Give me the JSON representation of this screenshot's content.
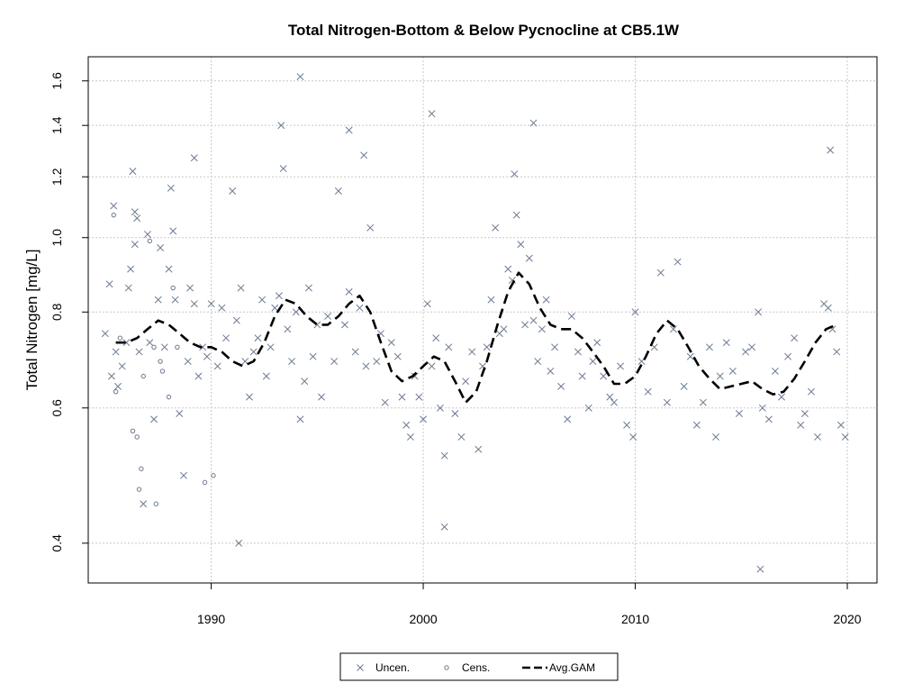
{
  "chart_data": {
    "type": "scatter",
    "title": "Total Nitrogen-Bottom & Below Pycnocline at CB5.1W",
    "xlabel": "",
    "ylabel": "Total Nitrogen [mg/L]",
    "xlim": [
      1984.2,
      2021.4
    ],
    "ylim": [
      0.355,
      1.72
    ],
    "y_scale": "log",
    "grid": true,
    "legend_position": "bottom",
    "x_ticks": [
      1990,
      2000,
      2010,
      2020
    ],
    "y_ticks": [
      0.4,
      0.6,
      0.8,
      1.0,
      1.2,
      1.4,
      1.6
    ],
    "y_tick_labels": [
      "0.4",
      "0.6",
      "0.8",
      "1.0",
      "1.2",
      "1.4",
      "1.6"
    ],
    "colors": {
      "points": "#6b7a8f",
      "gam": "#000000",
      "grid": "#c8c8c8"
    },
    "legend": [
      {
        "label": "Uncen.",
        "symbol": "x-marker-icon"
      },
      {
        "label": "Cens.",
        "symbol": "circle-marker-icon"
      },
      {
        "label": "Avg.GAM",
        "symbol": "dashed-line-icon"
      }
    ],
    "series": [
      {
        "name": "Uncen.",
        "marker": "x",
        "x": [
          1985.0,
          1985.2,
          1985.3,
          1985.4,
          1985.5,
          1985.6,
          1985.8,
          1986.0,
          1986.1,
          1986.2,
          1986.3,
          1986.4,
          1986.5,
          1986.6,
          1986.8,
          1987.0,
          1987.1,
          1987.3,
          1987.5,
          1987.6,
          1987.8,
          1988.0,
          1988.1,
          1988.2,
          1988.3,
          1988.5,
          1988.7,
          1988.9,
          1989.0,
          1989.2,
          1989.4,
          1989.6,
          1989.8,
          1990.0,
          1990.3,
          1990.5,
          1990.7,
          1991.0,
          1991.2,
          1991.4,
          1991.6,
          1991.8,
          1992.0,
          1992.2,
          1992.4,
          1992.6,
          1992.8,
          1993.0,
          1993.2,
          1993.4,
          1993.6,
          1993.8,
          1994.0,
          1994.2,
          1994.4,
          1994.6,
          1994.8,
          1995.0,
          1995.2,
          1995.5,
          1995.8,
          1996.0,
          1996.3,
          1996.5,
          1996.8,
          1997.0,
          1997.3,
          1997.5,
          1997.8,
          1998.0,
          1998.2,
          1998.5,
          1998.8,
          1999.0,
          1999.2,
          1999.4,
          1999.6,
          1999.8,
          2000.0,
          2000.2,
          2000.4,
          2000.6,
          2000.8,
          2001.0,
          2001.2,
          2001.5,
          2001.8,
          2002.0,
          2002.3,
          2002.6,
          2002.8,
          2003.0,
          2003.2,
          2003.4,
          2003.6,
          2003.8,
          2004.0,
          2004.2,
          2004.4,
          2004.6,
          2004.8,
          2005.0,
          2005.2,
          2005.4,
          2005.6,
          2005.8,
          2006.0,
          2006.2,
          2006.5,
          2006.8,
          2007.0,
          2007.3,
          2007.5,
          2007.8,
          2008.0,
          2008.2,
          2008.5,
          2008.8,
          2009.0,
          2009.3,
          2009.6,
          2009.9,
          2010.0,
          2010.3,
          2010.6,
          2010.9,
          2011.2,
          2011.5,
          2011.8,
          2012.0,
          2012.3,
          2012.6,
          2012.9,
          2013.2,
          2013.5,
          2013.8,
          2014.0,
          2014.3,
          2014.6,
          2014.9,
          2015.2,
          2015.5,
          2015.8,
          2016.0,
          2016.3,
          2016.6,
          2016.9,
          2017.2,
          2017.5,
          2017.8,
          2018.0,
          2018.3,
          2018.6,
          2018.9,
          2019.1,
          2019.3,
          2019.5,
          2019.7,
          2019.9,
          1986.4,
          1993.3,
          1994.2,
          1996.5,
          1997.2,
          2000.4,
          2004.3,
          2005.2,
          2019.2,
          2001.0,
          2015.9,
          1989.2,
          1991.3
        ],
        "y": [
          0.75,
          0.87,
          0.66,
          1.1,
          0.71,
          0.64,
          0.68,
          0.73,
          0.86,
          0.91,
          1.22,
          0.98,
          1.06,
          0.71,
          0.45,
          1.01,
          0.73,
          0.58,
          0.83,
          0.97,
          0.72,
          0.91,
          1.16,
          1.02,
          0.83,
          0.59,
          0.49,
          0.69,
          0.86,
          0.82,
          0.66,
          0.72,
          0.7,
          0.82,
          0.68,
          0.81,
          0.74,
          1.15,
          0.78,
          0.86,
          0.69,
          0.62,
          0.71,
          0.74,
          0.83,
          0.66,
          0.72,
          0.81,
          0.84,
          1.23,
          0.76,
          0.69,
          0.8,
          0.58,
          0.65,
          0.86,
          0.7,
          0.77,
          0.62,
          0.79,
          0.69,
          1.15,
          0.77,
          0.85,
          0.71,
          0.81,
          0.68,
          1.03,
          0.69,
          0.75,
          0.61,
          0.73,
          0.7,
          0.62,
          0.57,
          0.55,
          0.66,
          0.62,
          0.58,
          0.82,
          0.68,
          0.74,
          0.6,
          0.52,
          0.72,
          0.59,
          0.55,
          0.65,
          0.71,
          0.53,
          0.68,
          0.72,
          0.83,
          1.03,
          0.75,
          0.76,
          0.91,
          0.88,
          1.07,
          0.98,
          0.77,
          0.94,
          0.78,
          0.69,
          0.76,
          0.83,
          0.67,
          0.72,
          0.64,
          0.58,
          0.79,
          0.71,
          0.66,
          0.6,
          0.69,
          0.73,
          0.66,
          0.62,
          0.61,
          0.68,
          0.57,
          0.55,
          0.8,
          0.69,
          0.63,
          0.72,
          0.9,
          0.61,
          0.76,
          0.93,
          0.64,
          0.7,
          0.57,
          0.61,
          0.72,
          0.55,
          0.66,
          0.73,
          0.67,
          0.59,
          0.71,
          0.72,
          0.8,
          0.6,
          0.58,
          0.67,
          0.62,
          0.7,
          0.74,
          0.57,
          0.59,
          0.63,
          0.55,
          0.82,
          0.81,
          0.76,
          0.71,
          0.57,
          0.55,
          1.08,
          1.4,
          1.62,
          1.38,
          1.28,
          1.45,
          1.21,
          1.41,
          1.3,
          0.42,
          0.37,
          1.27,
          0.4
        ]
      },
      {
        "name": "Cens.",
        "marker": "circle",
        "x": [
          1985.4,
          1985.5,
          1985.7,
          1986.3,
          1986.5,
          1986.6,
          1986.7,
          1986.8,
          1987.1,
          1987.3,
          1987.4,
          1987.6,
          1987.7,
          1988.0,
          1988.2,
          1988.4,
          1989.7,
          1990.1
        ],
        "y": [
          1.07,
          0.63,
          0.74,
          0.56,
          0.55,
          0.47,
          0.5,
          0.66,
          0.99,
          0.72,
          0.45,
          0.69,
          0.67,
          0.62,
          0.86,
          0.72,
          0.48,
          0.49
        ]
      },
      {
        "name": "Avg.GAM",
        "line": "dashed",
        "x": [
          1985.5,
          1986.0,
          1986.5,
          1987.0,
          1987.5,
          1988.0,
          1988.5,
          1989.0,
          1989.5,
          1990.0,
          1990.5,
          1991.0,
          1991.5,
          1992.0,
          1992.5,
          1993.0,
          1993.5,
          1994.0,
          1994.5,
          1995.0,
          1995.5,
          1996.0,
          1996.5,
          1997.0,
          1997.5,
          1998.0,
          1998.5,
          1999.0,
          1999.5,
          2000.0,
          2000.5,
          2001.0,
          2001.5,
          2002.0,
          2002.5,
          2003.0,
          2003.5,
          2004.0,
          2004.5,
          2005.0,
          2005.5,
          2006.0,
          2006.5,
          2007.0,
          2007.5,
          2008.0,
          2008.5,
          2009.0,
          2009.5,
          2010.0,
          2010.5,
          2011.0,
          2011.5,
          2012.0,
          2012.5,
          2013.0,
          2013.5,
          2014.0,
          2014.5,
          2015.0,
          2015.5,
          2016.0,
          2016.5,
          2017.0,
          2017.5,
          2018.0,
          2018.5,
          2019.0,
          2019.5
        ],
        "y": [
          0.73,
          0.73,
          0.74,
          0.76,
          0.78,
          0.77,
          0.75,
          0.73,
          0.72,
          0.72,
          0.71,
          0.69,
          0.68,
          0.69,
          0.73,
          0.79,
          0.83,
          0.82,
          0.79,
          0.77,
          0.77,
          0.79,
          0.82,
          0.84,
          0.8,
          0.73,
          0.67,
          0.65,
          0.66,
          0.68,
          0.7,
          0.69,
          0.65,
          0.61,
          0.63,
          0.69,
          0.77,
          0.85,
          0.9,
          0.87,
          0.81,
          0.77,
          0.76,
          0.76,
          0.74,
          0.71,
          0.68,
          0.645,
          0.645,
          0.66,
          0.7,
          0.75,
          0.78,
          0.76,
          0.72,
          0.68,
          0.655,
          0.635,
          0.64,
          0.645,
          0.65,
          0.635,
          0.625,
          0.63,
          0.655,
          0.69,
          0.73,
          0.76,
          0.77
        ]
      }
    ]
  }
}
